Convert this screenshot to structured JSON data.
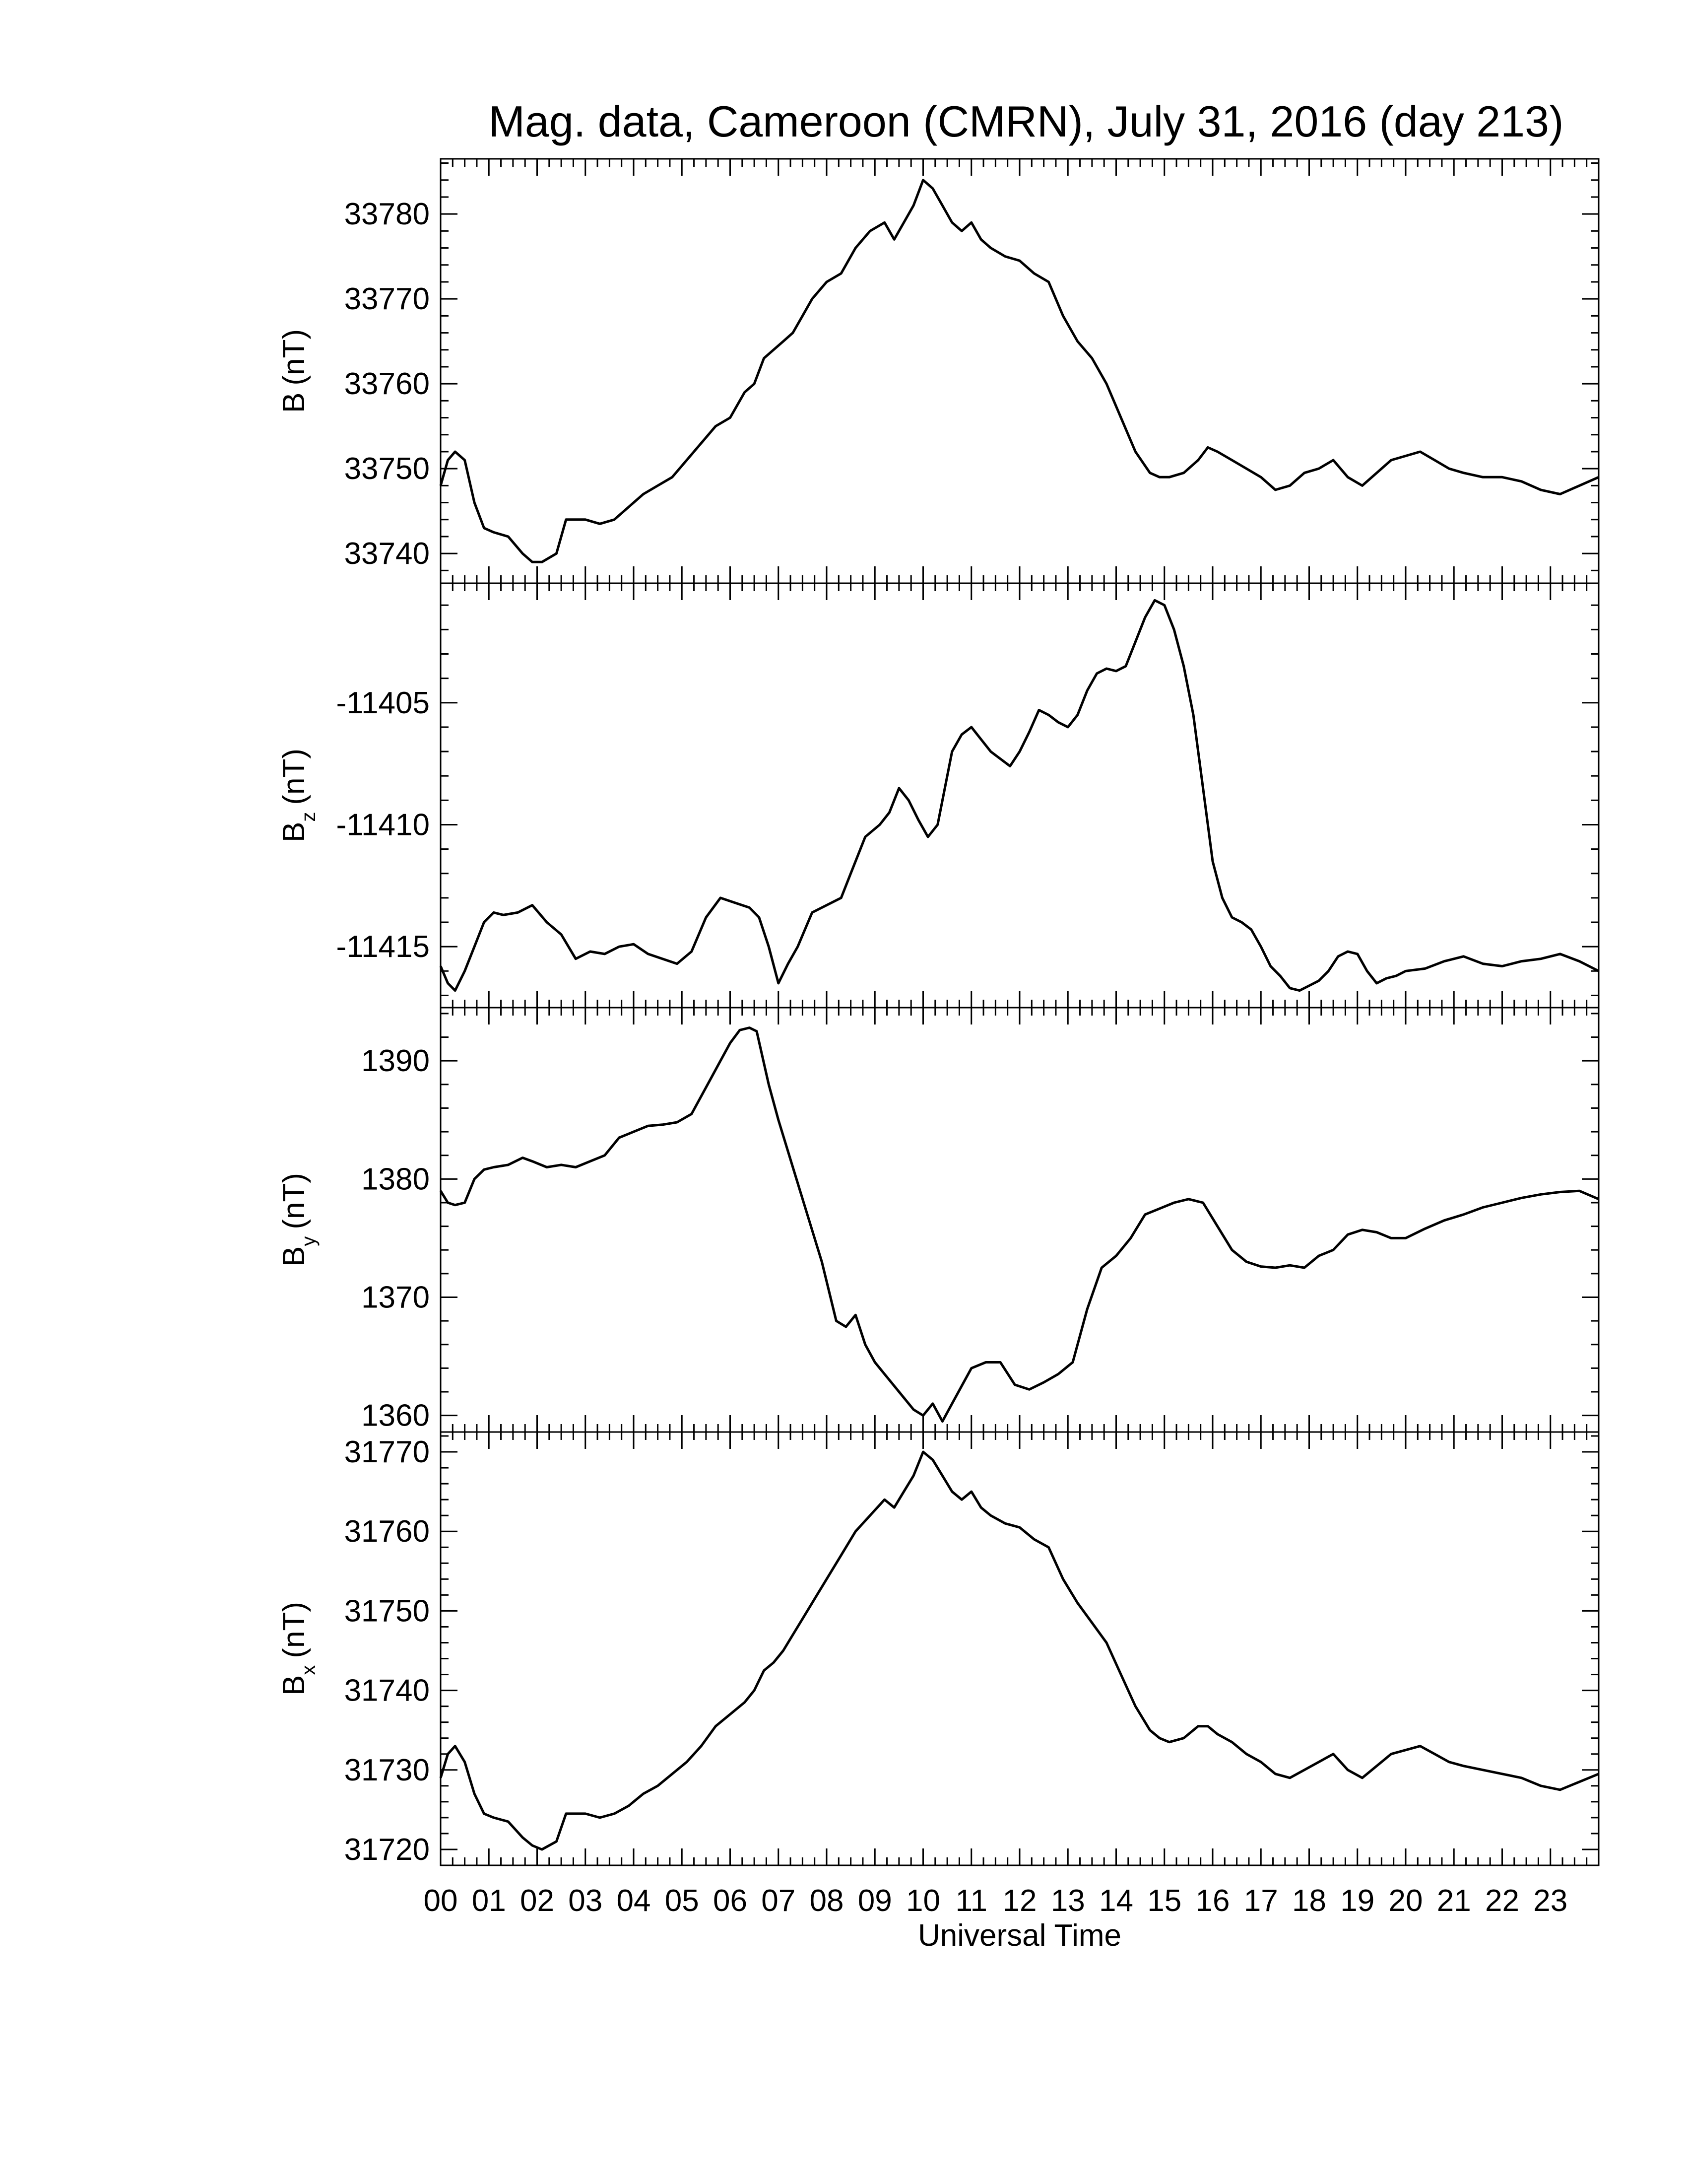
{
  "chart_data": {
    "type": "line",
    "title": "Mag. data, Cameroon (CMRN), July 31, 2016 (day 213)",
    "xlabel": "Universal Time",
    "x_range": [
      0,
      24
    ],
    "x_ticks": [
      "00",
      "01",
      "02",
      "03",
      "04",
      "05",
      "06",
      "07",
      "08",
      "09",
      "10",
      "11",
      "12",
      "13",
      "14",
      "15",
      "16",
      "17",
      "18",
      "19",
      "20",
      "21",
      "22",
      "23"
    ],
    "grid": false,
    "line_color": "#000000",
    "panels": [
      {
        "label_main": "B",
        "label_sub": "",
        "unit": "(nT)",
        "ylim": [
          33736.5,
          33786.5
        ],
        "yticks": [
          "33740",
          "33750",
          "33760",
          "33770",
          "33780"
        ],
        "series": {
          "x": [
            0.0,
            0.15,
            0.3,
            0.5,
            0.7,
            0.9,
            1.1,
            1.4,
            1.7,
            1.9,
            2.1,
            2.4,
            2.6,
            2.8,
            3.0,
            3.3,
            3.6,
            3.9,
            4.2,
            4.5,
            4.8,
            5.1,
            5.4,
            5.7,
            6.0,
            6.3,
            6.5,
            6.7,
            6.9,
            7.1,
            7.3,
            7.5,
            7.7,
            8.0,
            8.3,
            8.6,
            8.9,
            9.2,
            9.4,
            9.6,
            9.8,
            10.0,
            10.2,
            10.4,
            10.6,
            10.8,
            11.0,
            11.2,
            11.4,
            11.7,
            12.0,
            12.3,
            12.6,
            12.9,
            13.2,
            13.5,
            13.8,
            14.1,
            14.4,
            14.7,
            14.9,
            15.1,
            15.4,
            15.7,
            15.9,
            16.1,
            16.4,
            16.7,
            17.0,
            17.3,
            17.6,
            17.9,
            18.2,
            18.5,
            18.8,
            19.1,
            19.4,
            19.7,
            20.0,
            20.3,
            20.6,
            20.9,
            21.2,
            21.6,
            22.0,
            22.4,
            22.8,
            23.2,
            23.6,
            24.0
          ],
          "y": [
            33748,
            33751,
            33752,
            33751,
            33746,
            33743,
            33742.5,
            33742,
            33740,
            33739,
            33739,
            33740,
            33744,
            33744,
            33744,
            33743.5,
            33744,
            33745.5,
            33747,
            33748,
            33749,
            33751,
            33753,
            33755,
            33756,
            33759,
            33760,
            33763,
            33764,
            33765,
            33766,
            33768,
            33770,
            33772,
            33773,
            33776,
            33778,
            33779,
            33777,
            33779,
            33781,
            33784,
            33783,
            33781,
            33779,
            33778,
            33779,
            33777,
            33776,
            33775,
            33774.5,
            33773,
            33772,
            33768,
            33765,
            33763,
            33760,
            33756,
            33752,
            33749.5,
            33749,
            33749,
            33749.5,
            33751,
            33752.5,
            33752,
            33751,
            33750,
            33749,
            33747.5,
            33748,
            33749.5,
            33750,
            33751,
            33749,
            33748,
            33749.5,
            33751,
            33751.5,
            33752,
            33751,
            33750,
            33749.5,
            33749,
            33749,
            33748.5,
            33747.5,
            33747,
            33748,
            33749
          ]
        }
      },
      {
        "label_main": "B",
        "label_sub": "z",
        "unit": "(nT)",
        "ylim": [
          -11417.5,
          -11400.1
        ],
        "yticks": [
          "-11405",
          "-11410",
          "-11415"
        ],
        "series": {
          "x": [
            0.0,
            0.15,
            0.3,
            0.5,
            0.7,
            0.9,
            1.1,
            1.3,
            1.6,
            1.9,
            2.2,
            2.5,
            2.8,
            3.1,
            3.4,
            3.7,
            4.0,
            4.3,
            4.6,
            4.9,
            5.2,
            5.5,
            5.8,
            6.1,
            6.4,
            6.6,
            6.8,
            7.0,
            7.2,
            7.4,
            7.7,
            8.0,
            8.3,
            8.5,
            8.8,
            9.1,
            9.3,
            9.5,
            9.7,
            9.9,
            10.1,
            10.3,
            10.6,
            10.8,
            11.0,
            11.2,
            11.4,
            11.6,
            11.8,
            12.0,
            12.2,
            12.4,
            12.6,
            12.8,
            13.0,
            13.2,
            13.4,
            13.6,
            13.8,
            14.0,
            14.2,
            14.4,
            14.6,
            14.8,
            15.0,
            15.2,
            15.4,
            15.6,
            15.8,
            16.0,
            16.2,
            16.4,
            16.6,
            16.8,
            17.0,
            17.2,
            17.4,
            17.6,
            17.8,
            18.0,
            18.2,
            18.4,
            18.6,
            18.8,
            19.0,
            19.2,
            19.4,
            19.6,
            19.8,
            20.0,
            20.4,
            20.8,
            21.2,
            21.6,
            22.0,
            22.4,
            22.8,
            23.2,
            23.6,
            24.0
          ],
          "y": [
            -11415.8,
            -11416.5,
            -11416.8,
            -11416,
            -11415,
            -11414,
            -11413.6,
            -11413.7,
            -11413.6,
            -11413.3,
            -11414,
            -11414.5,
            -11415.5,
            -11415.2,
            -11415.3,
            -11415,
            -11414.9,
            -11415.3,
            -11415.5,
            -11415.7,
            -11415.2,
            -11413.8,
            -11413,
            -11413.2,
            -11413.4,
            -11413.8,
            -11415,
            -11416.5,
            -11415.7,
            -11415,
            -11413.6,
            -11413.3,
            -11413,
            -11412,
            -11410.5,
            -11410,
            -11409.5,
            -11408.5,
            -11409,
            -11409.8,
            -11410.5,
            -11410,
            -11407,
            -11406.3,
            -11406,
            -11406.5,
            -11407,
            -11407.3,
            -11407.6,
            -11407,
            -11406.2,
            -11405.3,
            -11405.5,
            -11405.8,
            -11406,
            -11405.5,
            -11404.5,
            -11403.8,
            -11403.6,
            -11403.7,
            -11403.5,
            -11402.5,
            -11401.5,
            -11400.8,
            -11401,
            -11402,
            -11403.5,
            -11405.5,
            -11408.5,
            -11411.5,
            -11413,
            -11413.8,
            -11414,
            -11414.3,
            -11415,
            -11415.8,
            -11416.2,
            -11416.7,
            -11416.8,
            -11416.6,
            -11416.4,
            -11416,
            -11415.4,
            -11415.2,
            -11415.3,
            -11416,
            -11416.5,
            -11416.3,
            -11416.2,
            -11416,
            -11415.9,
            -11415.6,
            -11415.4,
            -11415.7,
            -11415.8,
            -11415.6,
            -11415.5,
            -11415.3,
            -11415.6,
            -11416
          ]
        }
      },
      {
        "label_main": "B",
        "label_sub": "y",
        "unit": "(nT)",
        "ylim": [
          1358.6,
          1394.5
        ],
        "yticks": [
          "1360",
          "1370",
          "1380",
          "1390"
        ],
        "series": {
          "x": [
            0.0,
            0.15,
            0.3,
            0.5,
            0.7,
            0.9,
            1.1,
            1.4,
            1.7,
            1.9,
            2.2,
            2.5,
            2.8,
            3.1,
            3.4,
            3.7,
            4.0,
            4.3,
            4.6,
            4.9,
            5.2,
            5.4,
            5.6,
            5.8,
            6.0,
            6.2,
            6.4,
            6.55,
            6.8,
            7.0,
            7.3,
            7.6,
            7.9,
            8.2,
            8.4,
            8.6,
            8.8,
            9.0,
            9.2,
            9.5,
            9.8,
            10.0,
            10.2,
            10.4,
            10.6,
            10.8,
            11.0,
            11.3,
            11.6,
            11.9,
            12.2,
            12.5,
            12.8,
            13.1,
            13.4,
            13.7,
            14.0,
            14.3,
            14.6,
            14.9,
            15.2,
            15.5,
            15.8,
            16.1,
            16.4,
            16.7,
            17.0,
            17.3,
            17.6,
            17.9,
            18.2,
            18.5,
            18.8,
            19.1,
            19.4,
            19.7,
            20.0,
            20.4,
            20.8,
            21.2,
            21.6,
            22.0,
            22.4,
            22.8,
            23.2,
            23.6,
            24.0
          ],
          "y": [
            1379,
            1378,
            1377.8,
            1378,
            1380,
            1380.8,
            1381,
            1381.2,
            1381.8,
            1381.5,
            1381,
            1381.2,
            1381,
            1381.5,
            1382,
            1383.5,
            1384,
            1384.5,
            1384.6,
            1384.8,
            1385.5,
            1387,
            1388.5,
            1390,
            1391.5,
            1392.6,
            1392.8,
            1392.5,
            1388,
            1385,
            1381,
            1377,
            1373,
            1368,
            1367.5,
            1368.5,
            1366,
            1364.5,
            1363.5,
            1362,
            1360.5,
            1360,
            1361,
            1359.5,
            1361,
            1362.5,
            1364,
            1364.5,
            1364.5,
            1362.6,
            1362.2,
            1362.8,
            1363.5,
            1364.5,
            1369,
            1372.5,
            1373.5,
            1375,
            1377,
            1377.5,
            1378,
            1378.3,
            1378,
            1376,
            1374,
            1373,
            1372.6,
            1372.5,
            1372.7,
            1372.5,
            1373.5,
            1374,
            1375.3,
            1375.7,
            1375.5,
            1375,
            1375,
            1375.8,
            1376.5,
            1377,
            1377.6,
            1378,
            1378.4,
            1378.7,
            1378.9,
            1379,
            1378.3
          ]
        }
      },
      {
        "label_main": "B",
        "label_sub": "x",
        "unit": "(nT)",
        "ylim": [
          31718,
          31772.5
        ],
        "yticks": [
          "31720",
          "31730",
          "31740",
          "31750",
          "31760",
          "31770"
        ],
        "series": {
          "x": [
            0.0,
            0.15,
            0.3,
            0.5,
            0.7,
            0.9,
            1.1,
            1.4,
            1.7,
            1.9,
            2.1,
            2.4,
            2.6,
            2.8,
            3.0,
            3.3,
            3.6,
            3.9,
            4.2,
            4.5,
            4.8,
            5.1,
            5.4,
            5.7,
            6.0,
            6.3,
            6.5,
            6.7,
            6.9,
            7.1,
            7.3,
            7.5,
            7.7,
            8.0,
            8.3,
            8.6,
            8.9,
            9.2,
            9.4,
            9.6,
            9.8,
            10.0,
            10.2,
            10.4,
            10.6,
            10.8,
            11.0,
            11.2,
            11.4,
            11.7,
            12.0,
            12.3,
            12.6,
            12.9,
            13.2,
            13.5,
            13.8,
            14.1,
            14.4,
            14.7,
            14.9,
            15.1,
            15.4,
            15.7,
            15.9,
            16.1,
            16.4,
            16.7,
            17.0,
            17.3,
            17.6,
            17.9,
            18.2,
            18.5,
            18.8,
            19.1,
            19.4,
            19.7,
            20.0,
            20.3,
            20.6,
            20.9,
            21.2,
            21.6,
            22.0,
            22.4,
            22.8,
            23.2,
            23.6,
            24.0
          ],
          "y": [
            31729,
            31732,
            31733,
            31731,
            31727,
            31724.5,
            31724,
            31723.5,
            31721.5,
            31720.5,
            31720,
            31721,
            31724.5,
            31724.5,
            31724.5,
            31724,
            31724.5,
            31725.5,
            31727,
            31728,
            31729.5,
            31731,
            31733,
            31735.5,
            31737,
            31738.5,
            31740,
            31742.5,
            31743.5,
            31745,
            31747,
            31749,
            31751,
            31754,
            31757,
            31760,
            31762,
            31764,
            31763,
            31765,
            31767,
            31770,
            31769,
            31767,
            31765,
            31764,
            31765,
            31763,
            31762,
            31761,
            31760.5,
            31759,
            31758,
            31754,
            31751,
            31748.5,
            31746,
            31742,
            31738,
            31735,
            31734,
            31733.5,
            31734,
            31735.5,
            31735.5,
            31734.5,
            31733.5,
            31732,
            31731,
            31729.5,
            31729,
            31730,
            31731,
            31732,
            31730,
            31729,
            31730.5,
            31732,
            31732.5,
            31733,
            31732,
            31731,
            31730.5,
            31730,
            31729.5,
            31729,
            31728,
            31727.5,
            31728.5,
            31729.5
          ]
        }
      }
    ]
  }
}
